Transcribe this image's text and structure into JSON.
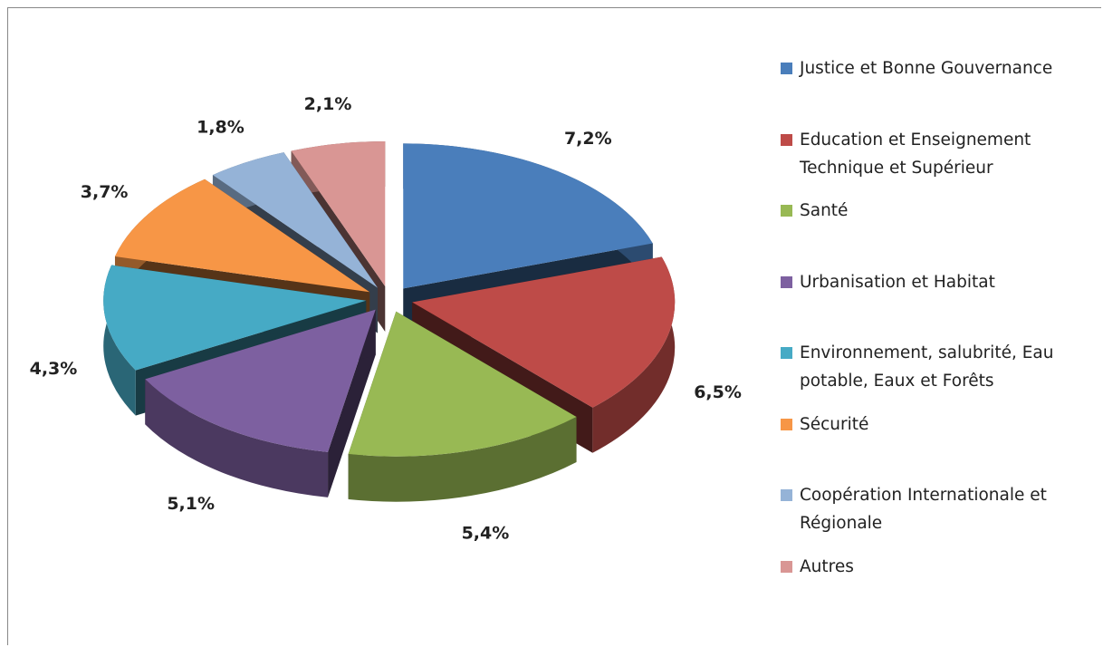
{
  "chart_data": {
    "type": "pie3d",
    "categories": [
      "Justice et Bonne Gouvernance",
      "Education et Enseignement Technique et Supérieur",
      "Santé",
      "Urbanisation et Habitat",
      "Environnement, salubrité, Eau potable, Eaux et Forêts",
      "Sécurité",
      "Coopération Internationale et Régionale",
      "Autres"
    ],
    "values": [
      7.2,
      6.5,
      5.4,
      5.1,
      4.3,
      3.7,
      1.8,
      2.1
    ],
    "value_labels": [
      "7,2%",
      "6,5%",
      "5,4%",
      "5,1%",
      "4,3%",
      "3,7%",
      "1,8%",
      "2,1%"
    ],
    "colors": [
      "#4a7ebb",
      "#be4b48",
      "#98b954",
      "#7d60a0",
      "#46aac5",
      "#f79646",
      "#95b3d7",
      "#d99694"
    ],
    "legend": "right"
  }
}
